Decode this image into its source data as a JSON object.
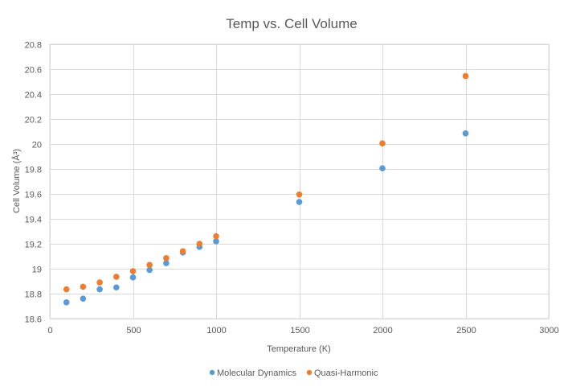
{
  "chart_data": {
    "type": "scatter",
    "title": "Temp vs. Cell Volume",
    "xlabel": "Temperature (K)",
    "ylabel": "Cell Volume (Å³)",
    "xlim": [
      0,
      3000
    ],
    "ylim": [
      18.6,
      20.8
    ],
    "xticks": [
      0,
      500,
      1000,
      1500,
      2000,
      2500,
      3000
    ],
    "yticks": [
      18.6,
      18.8,
      19,
      19.2,
      19.4,
      19.6,
      19.8,
      20,
      20.2,
      20.4,
      20.6,
      20.8
    ],
    "xtick_labels": [
      "0",
      "500",
      "1000",
      "1500",
      "2000",
      "2500",
      "3000"
    ],
    "ytick_labels": [
      "18.6",
      "18.8",
      "19",
      "19.2",
      "19.4",
      "19.6",
      "19.8",
      "20",
      "20.2",
      "20.4",
      "20.6",
      "20.8"
    ],
    "grid": true,
    "legend_position": "bottom",
    "series": [
      {
        "name": "Molecular Dynamics",
        "color": "#5B9BD5",
        "x": [
          100,
          200,
          300,
          400,
          500,
          600,
          700,
          800,
          900,
          1000,
          1500,
          2000,
          2500
        ],
        "y": [
          18.73,
          18.76,
          18.835,
          18.85,
          18.93,
          18.99,
          19.045,
          19.13,
          19.175,
          19.22,
          19.535,
          19.805,
          20.085
        ]
      },
      {
        "name": "Quasi-Harmonic",
        "color": "#ED7D31",
        "x": [
          100,
          200,
          300,
          400,
          500,
          600,
          700,
          800,
          900,
          1000,
          1500,
          2000,
          2500
        ],
        "y": [
          18.835,
          18.855,
          18.89,
          18.935,
          18.98,
          19.03,
          19.085,
          19.14,
          19.2,
          19.26,
          19.595,
          20.005,
          20.545
        ]
      }
    ]
  }
}
